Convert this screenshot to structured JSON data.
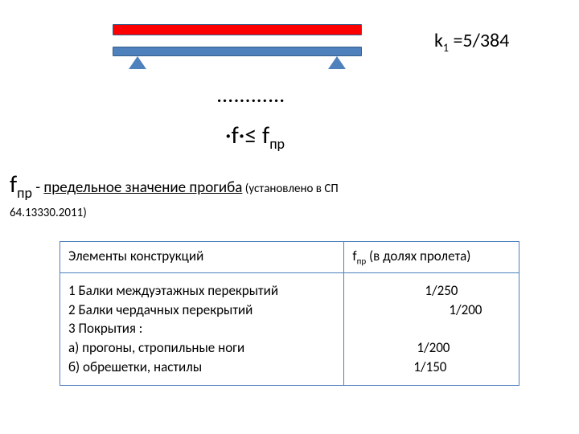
{
  "colors": {
    "red": "#ff0000",
    "blue": "#4f81bd",
    "border": "#365e8a"
  },
  "k1": {
    "label": "k",
    "sub": "1",
    "eq": " =5/384"
  },
  "dots": "…………",
  "inequality": {
    "left": "·f·≤ f",
    "sub": "пр"
  },
  "fpr": {
    "sym": "f",
    "sub": "пр",
    "dash_text": "  - ",
    "text": "предельное значение прогиба",
    "note1": " (установлено в СП ",
    "note2": "64.13330.2011)"
  },
  "table": {
    "head_col1": "Элементы конструкций",
    "head_col2_f": "f",
    "head_col2_sub": "пр",
    "head_col2_rest": " (в долях пролета)",
    "rows_col1": [
      "1 Балки междуэтажных перекрытий",
      "2 Балки чердачных перекрытий",
      "3 Покрытия :",
      "а) прогоны, стропильные ноги",
      "б) обрешетки, настилы"
    ],
    "rows_col2": [
      {
        "text": "1/250",
        "pad": 90
      },
      {
        "text": "1/200",
        "pad": 120
      },
      {
        "text": "",
        "pad": 0
      },
      {
        "text": "1/200",
        "pad": 80
      },
      {
        "text": "1/150",
        "pad": 76
      }
    ]
  }
}
